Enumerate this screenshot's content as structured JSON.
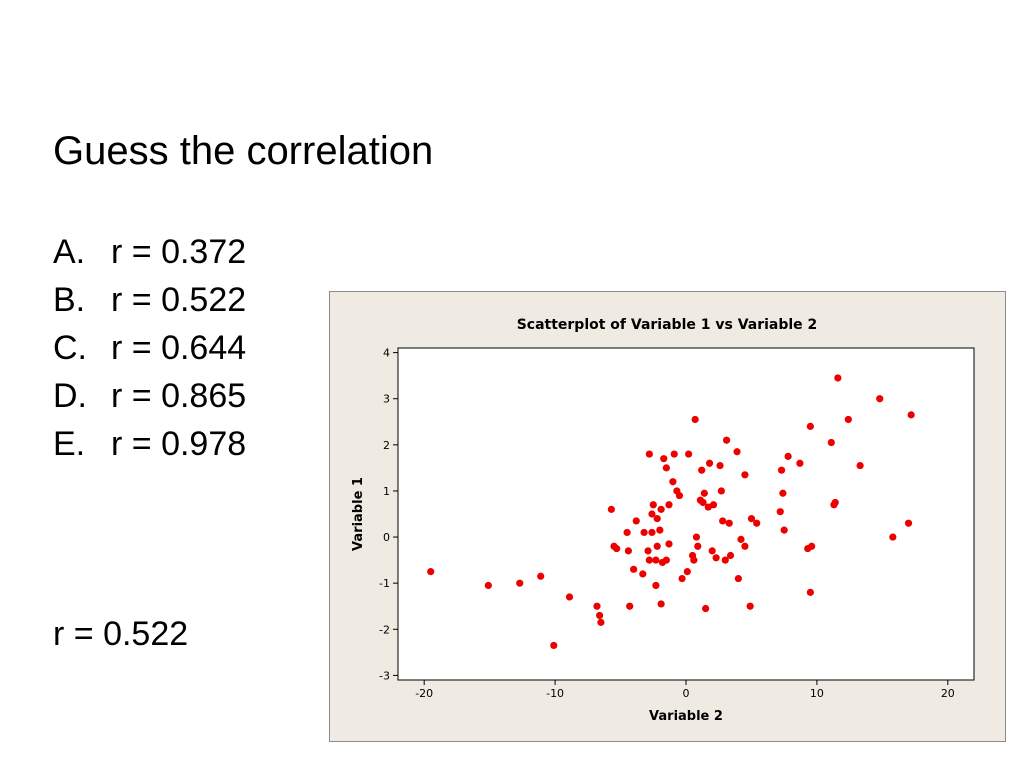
{
  "slide": {
    "title": "Guess the correlation",
    "options": [
      {
        "letter": "A.",
        "text": "r = 0.372"
      },
      {
        "letter": "B.",
        "text": "r = 0.522"
      },
      {
        "letter": "C.",
        "text": "r = 0.644"
      },
      {
        "letter": "D.",
        "text": "r = 0.865"
      },
      {
        "letter": "E.",
        "text": "r = 0.978"
      }
    ],
    "answer": "r = 0.522"
  },
  "chart_data": {
    "type": "scatter",
    "title": "Scatterplot of Variable 1 vs Variable 2",
    "xlabel": "Variable 2",
    "ylabel": "Variable 1",
    "xlim": [
      -22,
      22
    ],
    "ylim": [
      -3.1,
      4.1
    ],
    "xticks": [
      -20,
      -10,
      0,
      10,
      20
    ],
    "yticks": [
      -3,
      -2,
      -1,
      0,
      1,
      2,
      3,
      4
    ],
    "grid": false,
    "marker_color": "#ee0000",
    "background_color": "#efebe3",
    "plot_background_color": "#ffffff",
    "points": [
      [
        -19.5,
        -0.75
      ],
      [
        -15.1,
        -1.05
      ],
      [
        -12.7,
        -1.0
      ],
      [
        -11.1,
        -0.85
      ],
      [
        -10.1,
        -2.35
      ],
      [
        -8.9,
        -1.3
      ],
      [
        -6.8,
        -1.5
      ],
      [
        -6.6,
        -1.7
      ],
      [
        -6.5,
        -1.85
      ],
      [
        -5.7,
        0.6
      ],
      [
        -5.5,
        -0.2
      ],
      [
        -5.3,
        -0.25
      ],
      [
        -4.5,
        0.1
      ],
      [
        -4.4,
        -0.3
      ],
      [
        -4.3,
        -1.5
      ],
      [
        -4.0,
        -0.7
      ],
      [
        -3.8,
        0.35
      ],
      [
        -3.3,
        -0.8
      ],
      [
        -3.2,
        0.1
      ],
      [
        -2.9,
        -0.3
      ],
      [
        -2.8,
        -0.5
      ],
      [
        -2.8,
        1.8
      ],
      [
        -2.6,
        0.5
      ],
      [
        -2.6,
        0.1
      ],
      [
        -2.5,
        0.7
      ],
      [
        -2.3,
        -0.5
      ],
      [
        -2.3,
        -1.05
      ],
      [
        -2.2,
        -0.2
      ],
      [
        -2.2,
        0.4
      ],
      [
        -2.0,
        0.15
      ],
      [
        -1.9,
        -1.45
      ],
      [
        -1.9,
        0.6
      ],
      [
        -1.8,
        -0.55
      ],
      [
        -1.7,
        1.7
      ],
      [
        -1.5,
        1.5
      ],
      [
        -1.5,
        -0.5
      ],
      [
        -1.3,
        -0.15
      ],
      [
        -1.3,
        0.7
      ],
      [
        -1.0,
        1.2
      ],
      [
        -0.9,
        1.8
      ],
      [
        -0.7,
        1.0
      ],
      [
        -0.5,
        0.9
      ],
      [
        -0.3,
        -0.9
      ],
      [
        0.1,
        -0.75
      ],
      [
        0.2,
        1.8
      ],
      [
        0.7,
        2.55
      ],
      [
        0.5,
        -0.4
      ],
      [
        0.6,
        -0.5
      ],
      [
        0.8,
        0.0
      ],
      [
        0.9,
        -0.2
      ],
      [
        1.1,
        0.8
      ],
      [
        1.2,
        1.45
      ],
      [
        1.3,
        0.75
      ],
      [
        1.4,
        0.95
      ],
      [
        1.5,
        -1.55
      ],
      [
        1.7,
        0.65
      ],
      [
        1.8,
        1.6
      ],
      [
        2.0,
        -0.3
      ],
      [
        2.1,
        0.7
      ],
      [
        2.3,
        -0.45
      ],
      [
        2.6,
        1.55
      ],
      [
        2.7,
        1.0
      ],
      [
        2.8,
        0.35
      ],
      [
        3.0,
        -0.5
      ],
      [
        3.1,
        2.1
      ],
      [
        3.3,
        0.3
      ],
      [
        3.4,
        -0.4
      ],
      [
        3.9,
        1.85
      ],
      [
        4.0,
        -0.9
      ],
      [
        4.2,
        -0.05
      ],
      [
        4.5,
        1.35
      ],
      [
        4.5,
        -0.2
      ],
      [
        4.9,
        -1.5
      ],
      [
        5.0,
        0.4
      ],
      [
        5.4,
        0.3
      ],
      [
        7.2,
        0.55
      ],
      [
        7.3,
        1.45
      ],
      [
        7.4,
        0.95
      ],
      [
        7.5,
        0.15
      ],
      [
        7.8,
        1.75
      ],
      [
        8.7,
        1.6
      ],
      [
        9.3,
        -0.25
      ],
      [
        9.5,
        2.4
      ],
      [
        9.5,
        -1.2
      ],
      [
        9.6,
        -0.2
      ],
      [
        11.1,
        2.05
      ],
      [
        11.3,
        0.7
      ],
      [
        11.4,
        0.75
      ],
      [
        11.6,
        3.45
      ],
      [
        12.4,
        2.55
      ],
      [
        13.3,
        1.55
      ],
      [
        14.8,
        3.0
      ],
      [
        15.8,
        0.0
      ],
      [
        17.0,
        0.3
      ],
      [
        17.2,
        2.65
      ]
    ]
  }
}
